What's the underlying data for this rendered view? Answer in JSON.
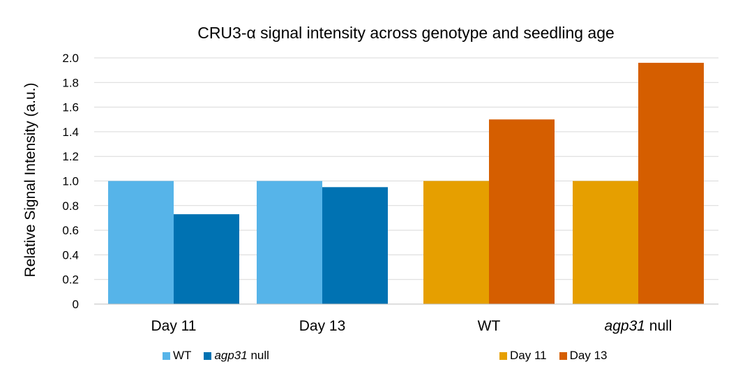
{
  "chart_data": {
    "type": "bar",
    "title": "CRU3-α signal intensity across genotype and seedling age",
    "ylabel": "Relative Signal Intensity (a.u.)",
    "xlabel": "",
    "ylim": [
      0,
      2.0
    ],
    "yticks": [
      "0",
      "0.2",
      "0.4",
      "0.6",
      "0.8",
      "1.0",
      "1.2",
      "1.4",
      "1.6",
      "1.8",
      "2.0"
    ],
    "grid": true,
    "legend_position": "bottom",
    "groups": [
      {
        "category": "Day 11",
        "category_italic": "",
        "category_rest": "Day 11",
        "series_set": "genotype",
        "values": [
          {
            "series": "WT",
            "value": 1.0
          },
          {
            "series": "agp31 null",
            "value": 0.73
          }
        ]
      },
      {
        "category": "Day 13",
        "category_italic": "",
        "category_rest": "Day 13",
        "series_set": "genotype",
        "values": [
          {
            "series": "WT",
            "value": 1.0
          },
          {
            "series": "agp31 null",
            "value": 0.95
          }
        ]
      },
      {
        "category": "WT",
        "category_italic": "",
        "category_rest": "WT",
        "series_set": "age",
        "values": [
          {
            "series": "Day 11",
            "value": 1.0
          },
          {
            "series": "Day 13",
            "value": 1.5
          }
        ]
      },
      {
        "category": "agp31 null",
        "category_italic": "agp31",
        "category_rest": " null",
        "series_set": "age",
        "values": [
          {
            "series": "Day 11",
            "value": 1.0
          },
          {
            "series": "Day 13",
            "value": 1.96
          }
        ]
      }
    ],
    "legends": [
      {
        "set": "genotype",
        "entries": [
          {
            "italic": "",
            "text": "WT",
            "color": "#56B4E9"
          },
          {
            "italic": "agp31",
            "text": " null",
            "color": "#0072B2"
          }
        ]
      },
      {
        "set": "age",
        "entries": [
          {
            "italic": "",
            "text": "Day 11",
            "color": "#E69F00"
          },
          {
            "italic": "",
            "text": "Day 13",
            "color": "#D55E00"
          }
        ]
      }
    ],
    "colors": {
      "WT": "#56B4E9",
      "agp31 null": "#0072B2",
      "Day 11": "#E69F00",
      "Day 13": "#D55E00"
    }
  }
}
